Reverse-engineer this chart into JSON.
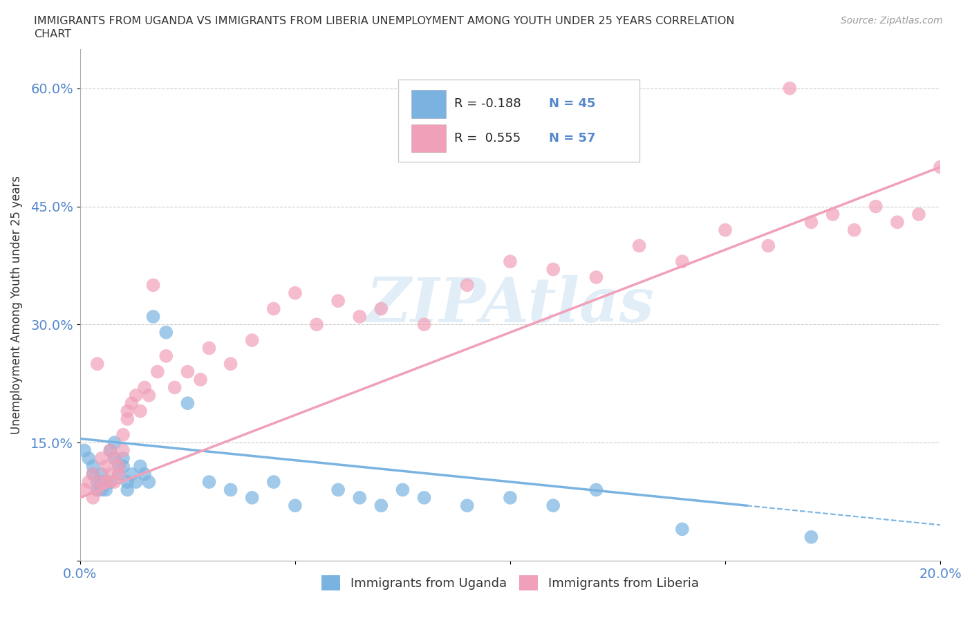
{
  "title_line1": "IMMIGRANTS FROM UGANDA VS IMMIGRANTS FROM LIBERIA UNEMPLOYMENT AMONG YOUTH UNDER 25 YEARS CORRELATION",
  "title_line2": "CHART",
  "source": "Source: ZipAtlas.com",
  "ylabel": "Unemployment Among Youth under 25 years",
  "xlim": [
    0.0,
    0.2
  ],
  "ylim": [
    0.0,
    0.65
  ],
  "xtick_vals": [
    0.0,
    0.05,
    0.1,
    0.15,
    0.2
  ],
  "xtick_labels": [
    "0.0%",
    "",
    "",
    "",
    "20.0%"
  ],
  "ytick_vals": [
    0.0,
    0.15,
    0.3,
    0.45,
    0.6
  ],
  "ytick_labels": [
    "",
    "15.0%",
    "30.0%",
    "45.0%",
    "60.0%"
  ],
  "legend_uganda": "Immigrants from Uganda",
  "legend_liberia": "Immigrants from Liberia",
  "color_uganda": "#7ab3e0",
  "color_liberia": "#f0a0b8",
  "R_uganda": -0.188,
  "N_uganda": 45,
  "R_liberia": 0.555,
  "N_liberia": 57,
  "watermark": "ZIPAtlas",
  "background_color": "#ffffff",
  "uganda_x": [
    0.001,
    0.002,
    0.003,
    0.003,
    0.004,
    0.004,
    0.005,
    0.005,
    0.005,
    0.006,
    0.006,
    0.007,
    0.007,
    0.008,
    0.008,
    0.009,
    0.009,
    0.01,
    0.01,
    0.011,
    0.011,
    0.012,
    0.013,
    0.014,
    0.015,
    0.016,
    0.017,
    0.02,
    0.025,
    0.03,
    0.035,
    0.04,
    0.045,
    0.05,
    0.06,
    0.065,
    0.07,
    0.075,
    0.08,
    0.09,
    0.1,
    0.11,
    0.12,
    0.14,
    0.17
  ],
  "uganda_y": [
    0.14,
    0.13,
    0.12,
    0.11,
    0.1,
    0.09,
    0.09,
    0.1,
    0.11,
    0.1,
    0.09,
    0.14,
    0.1,
    0.15,
    0.13,
    0.12,
    0.11,
    0.13,
    0.12,
    0.1,
    0.09,
    0.11,
    0.1,
    0.12,
    0.11,
    0.1,
    0.31,
    0.29,
    0.2,
    0.1,
    0.09,
    0.08,
    0.1,
    0.07,
    0.09,
    0.08,
    0.07,
    0.09,
    0.08,
    0.07,
    0.08,
    0.07,
    0.09,
    0.04,
    0.03
  ],
  "liberia_x": [
    0.001,
    0.002,
    0.003,
    0.003,
    0.004,
    0.004,
    0.005,
    0.005,
    0.006,
    0.006,
    0.007,
    0.007,
    0.008,
    0.008,
    0.009,
    0.009,
    0.01,
    0.01,
    0.011,
    0.011,
    0.012,
    0.013,
    0.014,
    0.015,
    0.016,
    0.017,
    0.018,
    0.02,
    0.022,
    0.025,
    0.028,
    0.03,
    0.035,
    0.04,
    0.045,
    0.05,
    0.055,
    0.06,
    0.065,
    0.07,
    0.08,
    0.09,
    0.1,
    0.11,
    0.12,
    0.13,
    0.14,
    0.15,
    0.16,
    0.165,
    0.17,
    0.175,
    0.18,
    0.185,
    0.19,
    0.195,
    0.2
  ],
  "liberia_y": [
    0.09,
    0.1,
    0.08,
    0.11,
    0.09,
    0.25,
    0.13,
    0.1,
    0.1,
    0.12,
    0.11,
    0.14,
    0.1,
    0.13,
    0.11,
    0.12,
    0.14,
    0.16,
    0.19,
    0.18,
    0.2,
    0.21,
    0.19,
    0.22,
    0.21,
    0.35,
    0.24,
    0.26,
    0.22,
    0.24,
    0.23,
    0.27,
    0.25,
    0.28,
    0.32,
    0.34,
    0.3,
    0.33,
    0.31,
    0.32,
    0.3,
    0.35,
    0.38,
    0.37,
    0.36,
    0.4,
    0.38,
    0.42,
    0.4,
    0.6,
    0.43,
    0.44,
    0.42,
    0.45,
    0.43,
    0.44,
    0.5
  ]
}
